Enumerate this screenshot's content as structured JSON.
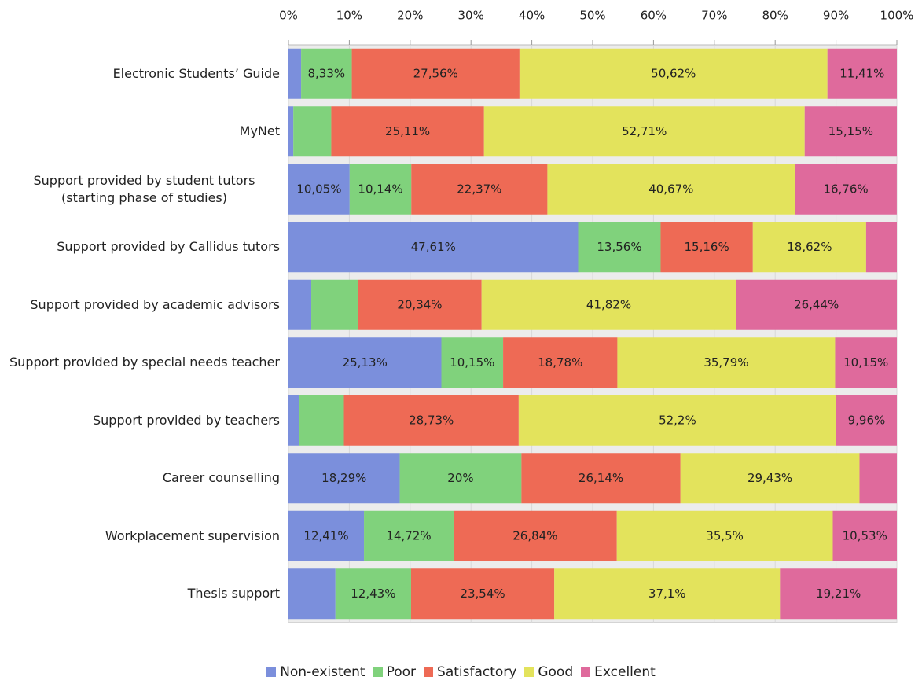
{
  "chart_data": {
    "type": "stacked_bar_horizontal",
    "categories": [
      "Electronic Students’ Guide",
      "MyNet",
      "Support provided by student tutors (starting phase of studies)",
      "Support provided by Callidus tutors",
      "Support provided by academic advisors",
      "Support provided by special needs teacher",
      "Support provided by teachers",
      "Career counselling",
      "Workplacement supervision",
      "Thesis support"
    ],
    "series": [
      {
        "name": "Non-existent",
        "color": "#7b8fdc",
        "values": [
          2.08,
          0.8,
          10.05,
          47.61,
          3.75,
          25.13,
          1.7,
          18.29,
          12.41,
          7.72
        ],
        "value_labels": [
          null,
          null,
          "10,05%",
          "47,61%",
          null,
          "25,13%",
          null,
          "18,29%",
          "12,41%",
          null
        ]
      },
      {
        "name": "Poor",
        "color": "#80d27c",
        "values": [
          8.33,
          6.23,
          10.14,
          13.56,
          7.65,
          10.15,
          7.41,
          20,
          14.72,
          12.43
        ],
        "value_labels": [
          "8,33%",
          null,
          "10,14%",
          "13,56%",
          null,
          "10,15%",
          null,
          "20%",
          "14,72%",
          "12,43%"
        ]
      },
      {
        "name": "Satisfactory",
        "color": "#ee6a55",
        "values": [
          27.56,
          25.11,
          22.37,
          15.16,
          20.34,
          18.78,
          28.73,
          26.14,
          26.84,
          23.54
        ],
        "value_labels": [
          "27,56%",
          "25,11%",
          "22,37%",
          "15,16%",
          "20,34%",
          "18,78%",
          "28,73%",
          "26,14%",
          "26,84%",
          "23,54%"
        ]
      },
      {
        "name": "Good",
        "color": "#e3e35c",
        "values": [
          50.62,
          52.71,
          40.67,
          18.62,
          41.82,
          35.79,
          52.2,
          29.43,
          35.5,
          37.1
        ],
        "value_labels": [
          "50,62%",
          "52,71%",
          "40,67%",
          "18,62%",
          "41,82%",
          "35,79%",
          "52,2%",
          "29,43%",
          "35,5%",
          "37,1%"
        ]
      },
      {
        "name": "Excellent",
        "color": "#df6a9c",
        "values": [
          11.41,
          15.15,
          16.76,
          5.05,
          26.44,
          10.15,
          9.96,
          6.14,
          10.53,
          19.21
        ],
        "value_labels": [
          "11,41%",
          "15,15%",
          "16,76%",
          null,
          "26,44%",
          "10,15%",
          "9,96%",
          null,
          "10,53%",
          "19,21%"
        ]
      }
    ],
    "xlim": [
      0,
      100
    ],
    "xticks": [
      {
        "value": 0,
        "label": "0%"
      },
      {
        "value": 10,
        "label": "10%"
      },
      {
        "value": 20,
        "label": "20%"
      },
      {
        "value": 30,
        "label": "30%"
      },
      {
        "value": 40,
        "label": "40%"
      },
      {
        "value": 50,
        "label": "50%"
      },
      {
        "value": 60,
        "label": "60%"
      },
      {
        "value": 70,
        "label": "70%"
      },
      {
        "value": 80,
        "label": "80%"
      },
      {
        "value": 90,
        "label": "90%"
      },
      {
        "value": 100,
        "label": "100%"
      }
    ],
    "grid": true,
    "legend": "bottom"
  }
}
